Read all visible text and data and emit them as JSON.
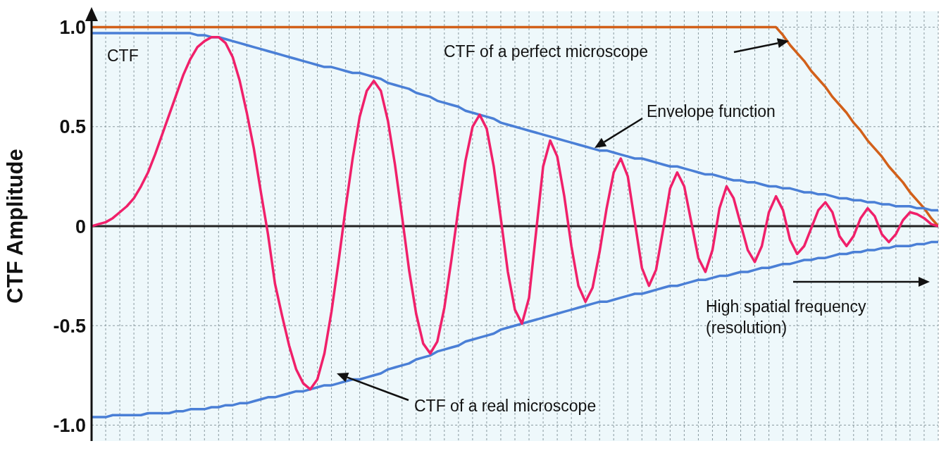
{
  "chart_data": {
    "type": "line",
    "ylabel": "CTF Amplitude",
    "categories": [
      null,
      null,
      null,
      null,
      null,
      null,
      null,
      null,
      null,
      null,
      null,
      null,
      null,
      null,
      null,
      null,
      null,
      null,
      null,
      null,
      null,
      null,
      null,
      null,
      null,
      null,
      null,
      null,
      null,
      null,
      null,
      null,
      null,
      null,
      null,
      null,
      null,
      null,
      null,
      null,
      null,
      null,
      null,
      null,
      null,
      null,
      null,
      null,
      null,
      null,
      null,
      null,
      null,
      null,
      null,
      null,
      null,
      null,
      null,
      null,
      null,
      null,
      null,
      null,
      null,
      null,
      null,
      null,
      null,
      null,
      null,
      null,
      null,
      null,
      null,
      null,
      null,
      null,
      null,
      null,
      null,
      null,
      null,
      null,
      null,
      null,
      null,
      null,
      null,
      null,
      null,
      null,
      null,
      null,
      null,
      null,
      null,
      null,
      null,
      null,
      null,
      null,
      null,
      null,
      null,
      null,
      null,
      null,
      null,
      null,
      null,
      null,
      null,
      null,
      null,
      null,
      null,
      null,
      null,
      null,
      null
    ],
    "series": [
      {
        "name": "CTF of a perfect microscope",
        "color": "#d2601a",
        "values": [
          1,
          1,
          1,
          1,
          1,
          1,
          1,
          1,
          1,
          1,
          1,
          1,
          1,
          1,
          1,
          1,
          1,
          1,
          1,
          1,
          1,
          1,
          1,
          1,
          1,
          1,
          1,
          1,
          1,
          1,
          1,
          1,
          1,
          1,
          1,
          1,
          1,
          1,
          1,
          1,
          1,
          1,
          1,
          1,
          1,
          1,
          1,
          1,
          1,
          1,
          1,
          1,
          1,
          1,
          1,
          1,
          1,
          1,
          1,
          1,
          1,
          1,
          1,
          1,
          1,
          1,
          1,
          1,
          1,
          1,
          1,
          1,
          1,
          1,
          1,
          1,
          1,
          1,
          1,
          1,
          1,
          1,
          1,
          1,
          1,
          1,
          1,
          1,
          1,
          1,
          1,
          1,
          1,
          1,
          1,
          1,
          1,
          1,
          0.96,
          0.91,
          0.87,
          0.83,
          0.78,
          0.74,
          0.7,
          0.65,
          0.61,
          0.57,
          0.52,
          0.48,
          0.43,
          0.39,
          0.35,
          0.3,
          0.26,
          0.22,
          0.17,
          0.13,
          0.09,
          0.04,
          0
        ]
      },
      {
        "name": "Envelope function",
        "color": "#4a7fd6",
        "values": [
          0.97,
          0.97,
          0.97,
          0.97,
          0.97,
          0.97,
          0.97,
          0.97,
          0.97,
          0.97,
          0.97,
          0.97,
          0.97,
          0.97,
          0.97,
          0.96,
          0.96,
          0.95,
          0.95,
          0.94,
          0.93,
          0.92,
          0.91,
          0.9,
          0.89,
          0.88,
          0.87,
          0.86,
          0.85,
          0.84,
          0.83,
          0.82,
          0.81,
          0.8,
          0.8,
          0.79,
          0.78,
          0.77,
          0.77,
          0.76,
          0.75,
          0.74,
          0.72,
          0.71,
          0.7,
          0.69,
          0.67,
          0.66,
          0.65,
          0.63,
          0.62,
          0.61,
          0.6,
          0.58,
          0.57,
          0.56,
          0.55,
          0.54,
          0.52,
          0.51,
          0.5,
          0.49,
          0.48,
          0.47,
          0.46,
          0.45,
          0.44,
          0.43,
          0.42,
          0.41,
          0.4,
          0.39,
          0.38,
          0.38,
          0.37,
          0.36,
          0.35,
          0.34,
          0.34,
          0.33,
          0.32,
          0.31,
          0.3,
          0.3,
          0.29,
          0.28,
          0.27,
          0.26,
          0.26,
          0.25,
          0.24,
          0.23,
          0.23,
          0.22,
          0.22,
          0.21,
          0.2,
          0.2,
          0.19,
          0.19,
          0.18,
          0.17,
          0.17,
          0.16,
          0.16,
          0.15,
          0.14,
          0.14,
          0.13,
          0.13,
          0.12,
          0.12,
          0.11,
          0.11,
          0.1,
          0.1,
          0.1,
          0.09,
          0.09,
          0.08,
          0.08
        ]
      },
      {
        "color": "#4a7fd6",
        "values": [
          -0.96,
          -0.96,
          -0.96,
          -0.95,
          -0.95,
          -0.95,
          -0.95,
          -0.95,
          -0.94,
          -0.94,
          -0.94,
          -0.94,
          -0.93,
          -0.93,
          -0.92,
          -0.92,
          -0.92,
          -0.91,
          -0.91,
          -0.9,
          -0.9,
          -0.89,
          -0.89,
          -0.88,
          -0.87,
          -0.86,
          -0.86,
          -0.85,
          -0.84,
          -0.83,
          -0.83,
          -0.82,
          -0.81,
          -0.8,
          -0.8,
          -0.79,
          -0.78,
          -0.77,
          -0.77,
          -0.76,
          -0.75,
          -0.74,
          -0.72,
          -0.71,
          -0.7,
          -0.69,
          -0.67,
          -0.66,
          -0.65,
          -0.63,
          -0.62,
          -0.61,
          -0.6,
          -0.58,
          -0.57,
          -0.56,
          -0.55,
          -0.54,
          -0.52,
          -0.51,
          -0.5,
          -0.49,
          -0.48,
          -0.47,
          -0.46,
          -0.45,
          -0.44,
          -0.43,
          -0.42,
          -0.41,
          -0.4,
          -0.39,
          -0.38,
          -0.38,
          -0.37,
          -0.36,
          -0.35,
          -0.34,
          -0.34,
          -0.33,
          -0.32,
          -0.31,
          -0.3,
          -0.3,
          -0.29,
          -0.28,
          -0.27,
          -0.27,
          -0.26,
          -0.25,
          -0.25,
          -0.24,
          -0.23,
          -0.23,
          -0.22,
          -0.21,
          -0.21,
          -0.2,
          -0.19,
          -0.19,
          -0.18,
          -0.17,
          -0.17,
          -0.16,
          -0.16,
          -0.15,
          -0.14,
          -0.14,
          -0.13,
          -0.13,
          -0.12,
          -0.12,
          -0.11,
          -0.11,
          -0.1,
          -0.1,
          -0.1,
          -0.09,
          -0.09,
          -0.08,
          -0.08
        ]
      },
      {
        "name": "CTF of a real microscope",
        "color": "#f0206a",
        "values": [
          0,
          0.01,
          0.02,
          0.04,
          0.07,
          0.1,
          0.14,
          0.2,
          0.27,
          0.36,
          0.46,
          0.56,
          0.66,
          0.76,
          0.84,
          0.9,
          0.93,
          0.95,
          0.95,
          0.92,
          0.85,
          0.73,
          0.57,
          0.39,
          0.17,
          -0.04,
          -0.29,
          -0.45,
          -0.6,
          -0.72,
          -0.79,
          -0.82,
          -0.77,
          -0.64,
          -0.43,
          -0.18,
          0.09,
          0.34,
          0.55,
          0.68,
          0.73,
          0.68,
          0.53,
          0.31,
          0.05,
          -0.22,
          -0.44,
          -0.59,
          -0.64,
          -0.58,
          -0.41,
          -0.17,
          0.09,
          0.33,
          0.5,
          0.56,
          0.49,
          0.3,
          0.04,
          -0.23,
          -0.42,
          -0.49,
          -0.36,
          -0.03,
          0.3,
          0.43,
          0.35,
          0.15,
          -0.1,
          -0.3,
          -0.38,
          -0.31,
          -0.13,
          0.09,
          0.27,
          0.34,
          0.25,
          0.02,
          -0.21,
          -0.3,
          -0.22,
          -0.02,
          0.19,
          0.27,
          0.2,
          0.02,
          -0.16,
          -0.23,
          -0.12,
          0.09,
          0.2,
          0.14,
          0.01,
          -0.12,
          -0.18,
          -0.1,
          0.07,
          0.15,
          0.08,
          -0.07,
          -0.14,
          -0.1,
          -0.01,
          0.08,
          0.12,
          0.07,
          -0.05,
          -0.1,
          -0.05,
          0.04,
          0.09,
          0.05,
          -0.04,
          -0.08,
          -0.04,
          0.03,
          0.07,
          0.06,
          0.04,
          0.01,
          0
        ]
      }
    ],
    "ylim": [
      -1.08,
      1.08
    ],
    "yticks": [
      {
        "value": -1,
        "label": "-1.0"
      },
      -0.5,
      0,
      0.5,
      {
        "value": 1,
        "label": "1.0"
      }
    ],
    "ref_lines": [
      {
        "axis": "y",
        "value": 0,
        "color": "#222222"
      }
    ],
    "annotations": [
      "CTF",
      "High spatial frequency (resolution)"
    ],
    "grid": true,
    "marker": "none",
    "line_style": "solid",
    "tick_labels": "y"
  }
}
